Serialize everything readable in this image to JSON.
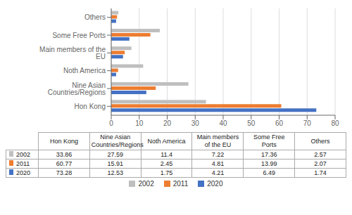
{
  "chart_data": {
    "type": "bar",
    "orientation": "horizontal",
    "categories": [
      "Hon Kong",
      "Nine Asian Countries/Regions",
      "Noth America",
      "Main members of the EU",
      "Some Free Ports",
      "Others"
    ],
    "series": [
      {
        "name": "2002",
        "color": "#bfbfbf",
        "values": [
          33.86,
          27.59,
          11.4,
          7.22,
          17.36,
          2.57
        ]
      },
      {
        "name": "2011",
        "color": "#ed7d31",
        "values": [
          60.77,
          15.91,
          2.45,
          4.81,
          13.99,
          2.07
        ]
      },
      {
        "name": "2020",
        "color": "#4472c4",
        "values": [
          73.28,
          12.53,
          1.75,
          4.21,
          6.49,
          1.74
        ]
      }
    ],
    "xlim": [
      0,
      80
    ],
    "xticks": [
      0,
      10,
      20,
      30,
      40,
      50,
      60,
      70,
      80
    ],
    "grid": true,
    "legend": "bottom"
  }
}
